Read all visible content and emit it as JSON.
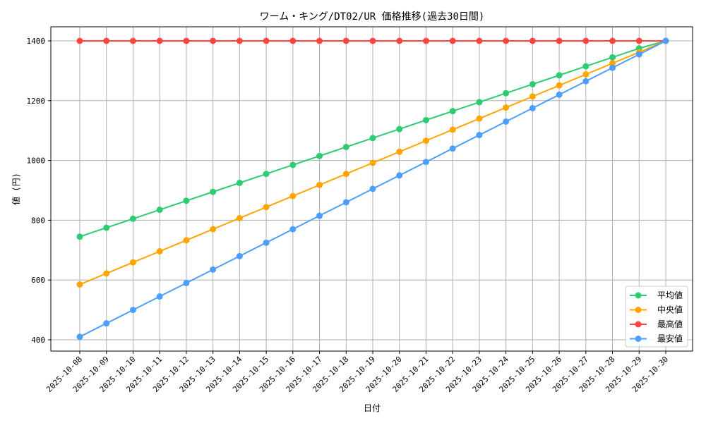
{
  "chart_data": {
    "type": "line",
    "title": "ワーム・キング/DT02/UR 価格推移(過去30日間)",
    "xlabel": "日付",
    "ylabel": "値 (円)",
    "ylim": [
      360,
      1450
    ],
    "yticks": [
      400,
      600,
      800,
      1000,
      1200,
      1400
    ],
    "grid": true,
    "legend_position": "bottom-right",
    "x": [
      "2025-10-08",
      "2025-10-09",
      "2025-10-10",
      "2025-10-11",
      "2025-10-12",
      "2025-10-13",
      "2025-10-14",
      "2025-10-15",
      "2025-10-16",
      "2025-10-17",
      "2025-10-18",
      "2025-10-19",
      "2025-10-20",
      "2025-10-21",
      "2025-10-22",
      "2025-10-23",
      "2025-10-24",
      "2025-10-25",
      "2025-10-26",
      "2025-10-27",
      "2025-10-28",
      "2025-10-29",
      "2025-10-30"
    ],
    "series": [
      {
        "name": "平均値",
        "color": "#2ecc71",
        "values": [
          745,
          775,
          805,
          835,
          865,
          895,
          925,
          955,
          985,
          1015,
          1045,
          1075,
          1105,
          1135,
          1165,
          1195,
          1225,
          1255,
          1285,
          1315,
          1345,
          1375,
          1400
        ]
      },
      {
        "name": "中央値",
        "color": "#ffa500",
        "values": [
          585,
          622,
          659,
          696,
          733,
          770,
          807,
          844,
          881,
          918,
          955,
          992,
          1029,
          1066,
          1103,
          1140,
          1177,
          1214,
          1251,
          1288,
          1325,
          1362,
          1400
        ]
      },
      {
        "name": "最高値",
        "color": "#ff4444",
        "values": [
          1400,
          1400,
          1400,
          1400,
          1400,
          1400,
          1400,
          1400,
          1400,
          1400,
          1400,
          1400,
          1400,
          1400,
          1400,
          1400,
          1400,
          1400,
          1400,
          1400,
          1400,
          1400,
          1400
        ]
      },
      {
        "name": "最安値",
        "color": "#4d9fff",
        "values": [
          410,
          455,
          500,
          545,
          590,
          635,
          680,
          725,
          770,
          815,
          860,
          905,
          950,
          995,
          1040,
          1085,
          1130,
          1175,
          1220,
          1265,
          1310,
          1355,
          1400
        ]
      }
    ]
  }
}
